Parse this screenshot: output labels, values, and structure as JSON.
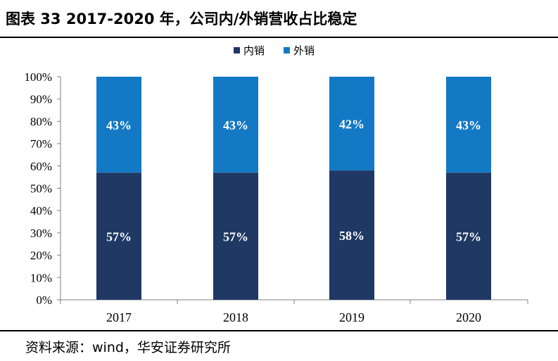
{
  "title": "图表 33 2017-2020 年，公司内/外销营收占比稳定",
  "source": "资料来源：wind，华安证券研究所",
  "colors": {
    "domestic": "#1f3864",
    "export": "#1479c4",
    "axis": "#808080"
  },
  "chart_data": {
    "type": "bar",
    "stacked": true,
    "categories": [
      "2017",
      "2018",
      "2019",
      "2020"
    ],
    "series": [
      {
        "name": "内销",
        "values": [
          57,
          57,
          58,
          57
        ],
        "labels": [
          "57%",
          "57%",
          "58%",
          "57%"
        ]
      },
      {
        "name": "外销",
        "values": [
          43,
          43,
          42,
          43
        ],
        "labels": [
          "43%",
          "43%",
          "42%",
          "43%"
        ]
      }
    ],
    "yticks": [
      "0%",
      "10%",
      "20%",
      "30%",
      "40%",
      "50%",
      "60%",
      "70%",
      "80%",
      "90%",
      "100%"
    ],
    "ylim": [
      0,
      100
    ],
    "legend": "top-center",
    "grid": false
  }
}
